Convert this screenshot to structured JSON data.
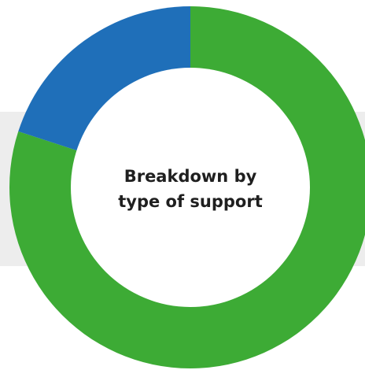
{
  "chart_data": {
    "type": "pie",
    "title": "Breakdown by type of support",
    "center_label_lines": [
      "Breakdown by",
      "type of support"
    ],
    "slices": [
      {
        "value": 80,
        "color": "#3dab35"
      },
      {
        "value": 20,
        "color": "#1f6fb9"
      }
    ],
    "legend": "none"
  },
  "colors": {
    "band": "#ededed",
    "center_fill": "#ffffff",
    "text": "#1f1f1f"
  }
}
